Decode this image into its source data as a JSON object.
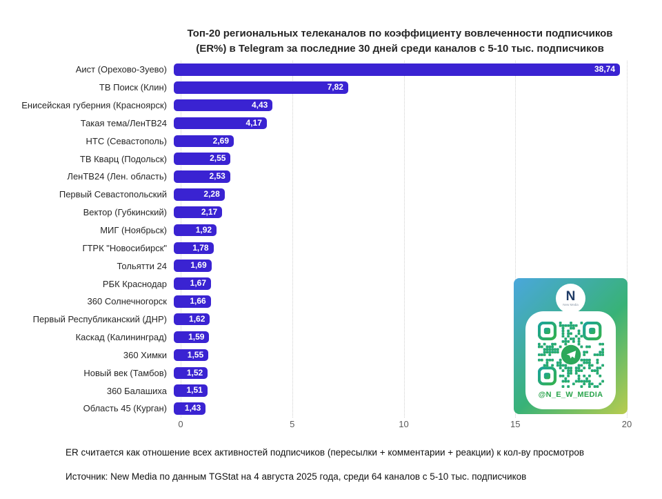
{
  "title": {
    "line1": "Топ-20 региональных телеканалов по коэффициенту вовлеченности подписчиков",
    "line2": "(ER%) в Telegram за последние 30 дней среди каналов с 5-10 тыс. подписчиков"
  },
  "chart_data": {
    "type": "bar",
    "orientation": "horizontal",
    "title": "Топ-20 региональных телеканалов по коэффициенту вовлеченности подписчиков (ER%) в Telegram за последние 30 дней среди каналов с 5-10 тыс. подписчиков",
    "categories": [
      "Аист (Орехово-Зуево)",
      "ТВ Поиск (Клин)",
      "Енисейская губерния (Красноярск)",
      "Такая тема/ЛенТВ24",
      "НТС (Севастополь)",
      "ТВ Кварц (Подольск)",
      "ЛенТВ24 (Лен. область)",
      "Первый Севастопольский",
      "Вектор (Губкинский)",
      "МИГ (Ноябрьск)",
      "ГТРК \"Новосибирск\"",
      "Тольятти 24",
      "РБК Краснодар",
      "360 Солнечногорск",
      "Первый Республиканский (ДНР)",
      "Каскад (Калининград)",
      "360 Химки",
      "Новый век (Тамбов)",
      "360 Балашиха",
      "Область 45 (Курган)"
    ],
    "values": [
      38.74,
      7.82,
      4.43,
      4.17,
      2.69,
      2.55,
      2.53,
      2.28,
      2.17,
      1.92,
      1.78,
      1.69,
      1.67,
      1.66,
      1.62,
      1.59,
      1.55,
      1.52,
      1.51,
      1.43
    ],
    "value_labels": [
      "38,74",
      "7,82",
      "4,43",
      "4,17",
      "2,69",
      "2,55",
      "2,53",
      "2,28",
      "2,17",
      "1,92",
      "1,78",
      "1,69",
      "1,67",
      "1,66",
      "1,62",
      "1,59",
      "1,55",
      "1,52",
      "1,51",
      "1,43"
    ],
    "xlabel": "",
    "ylabel": "",
    "xlim": [
      0,
      20
    ],
    "x_ticks": [
      0,
      5,
      10,
      15,
      20
    ],
    "grid": true,
    "bar_color": "#3a23d2",
    "value_label_color": "#ffffff"
  },
  "footnotes": {
    "er_note": "ER считается как отношение всех активностей подписчиков (пересылки + комментарии + реакции) к кол-ву просмотров",
    "source": "Источник: New Media по данным TGStat на 4 августа 2025 года, среди 64 каналов с 5-10 тыс. подписчиков"
  },
  "qr_card": {
    "handle": "@N_E_W_MEDIA",
    "logo_letter": "N",
    "logo_name": "New Media",
    "gradient_start": "#4aa7dc",
    "gradient_mid": "#38b277",
    "gradient_end": "#b9cc4e",
    "qr_color_start": "#1ba39b",
    "qr_color_end": "#33b14e",
    "handle_color": "#2aa44c"
  }
}
